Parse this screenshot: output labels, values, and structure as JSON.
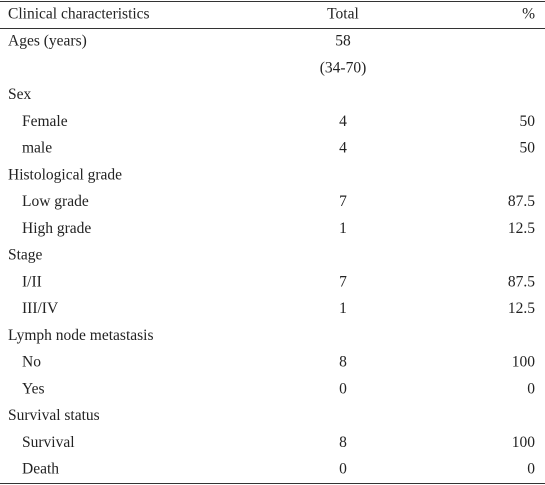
{
  "table": {
    "header": [
      "Clinical characteristics",
      "Total",
      "%"
    ],
    "age": {
      "label": "Ages (years)",
      "total": 58,
      "range": "(34-70)"
    },
    "groups": [
      {
        "title": "Sex",
        "rows": [
          [
            "Female",
            4,
            50
          ],
          [
            "male",
            4,
            50
          ]
        ]
      },
      {
        "title": "Histological grade",
        "rows": [
          [
            "Low grade",
            7,
            87.5
          ],
          [
            "High grade",
            1,
            12.5
          ]
        ]
      },
      {
        "title": "Stage",
        "rows": [
          [
            "I/II",
            7,
            87.5
          ],
          [
            "III/IV",
            1,
            12.5
          ]
        ]
      },
      {
        "title": "Lymph node metastasis",
        "rows": [
          [
            "No",
            8,
            100
          ],
          [
            "Yes",
            0,
            0
          ]
        ]
      },
      {
        "title": "Survival status",
        "rows": [
          [
            "Survival",
            8,
            100
          ],
          [
            "Death",
            0,
            0
          ]
        ]
      }
    ]
  }
}
